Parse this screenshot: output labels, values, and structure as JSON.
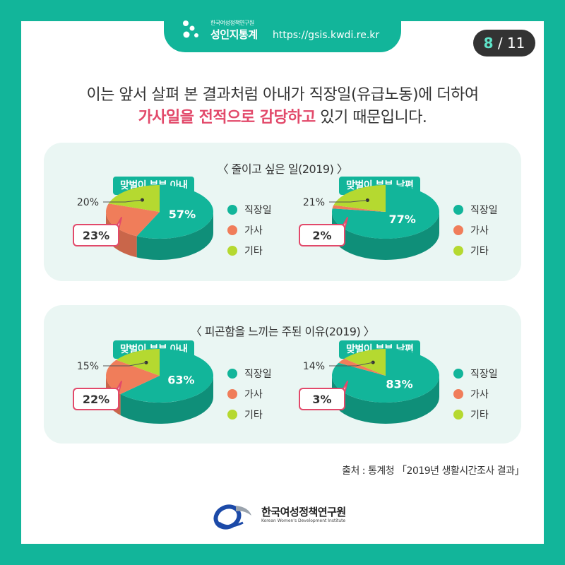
{
  "header": {
    "org_small": "한국여성정책연구원",
    "brand": "성인지통계",
    "url": "https://gsis.kwdi.re.kr",
    "page_current": "8",
    "page_total": "/ 11"
  },
  "headline": {
    "line1": "이는 앞서 살펴 본 결과처럼 아내가 직장일(유급노동)에 더하여",
    "line2_highlight": "가사일을 전적으로 감당하고",
    "line2_rest": " 있기 때문입니다."
  },
  "legend_labels": [
    "직장일",
    "가사",
    "기타"
  ],
  "colors": {
    "work": "#12b59a",
    "work_side": "#0f8f79",
    "house": "#f07d5a",
    "house_side": "#c9664a",
    "other": "#b5d930",
    "other_side": "#93b027",
    "callout": "#e2496a"
  },
  "chart_data": [
    {
      "type": "pie",
      "title": "〈 줄이고 싶은 일(2019) 〉",
      "charts": [
        {
          "label": "맞벌이 부부 아내",
          "categories": [
            "직장일",
            "가사",
            "기타"
          ],
          "values": [
            57,
            23,
            20
          ],
          "value_labels": [
            "57%",
            "23%",
            "20%"
          ]
        },
        {
          "label": "맞벌이 부부 남편",
          "categories": [
            "직장일",
            "가사",
            "기타"
          ],
          "values": [
            77,
            2,
            21
          ],
          "value_labels": [
            "77%",
            "2%",
            "21%"
          ]
        }
      ]
    },
    {
      "type": "pie",
      "title": "〈 피곤함을 느끼는 주된 이유(2019) 〉",
      "charts": [
        {
          "label": "맞벌이 부부 아내",
          "categories": [
            "직장일",
            "가사",
            "기타"
          ],
          "values": [
            63,
            22,
            15
          ],
          "value_labels": [
            "63%",
            "22%",
            "15%"
          ]
        },
        {
          "label": "맞벌이 부부 남편",
          "categories": [
            "직장일",
            "가사",
            "기타"
          ],
          "values": [
            83,
            3,
            14
          ],
          "value_labels": [
            "83%",
            "3%",
            "14%"
          ]
        }
      ]
    }
  ],
  "source": "출처 : 통계청 「2019년 생활시간조사 결과」",
  "footer": {
    "org_name": "한국여성정책연구원",
    "org_english": "Korean Women's Development Institute"
  }
}
